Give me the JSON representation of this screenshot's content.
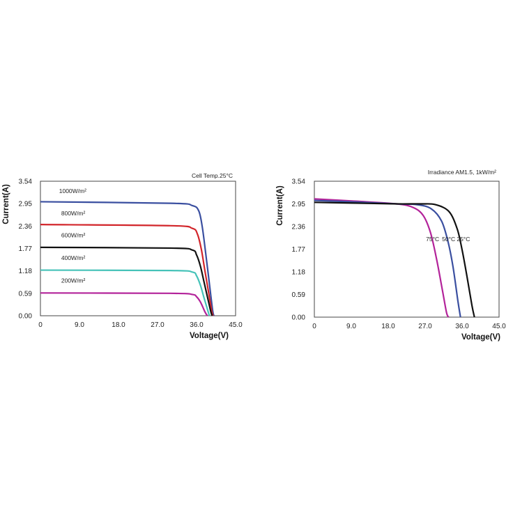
{
  "colors": {
    "navy": "#3a4fa0",
    "red": "#d2252a",
    "black": "#111111",
    "teal": "#45c2b8",
    "magenta": "#b3239a"
  },
  "chart_data": [
    {
      "type": "line",
      "annotation": "Cell Temp.25°C",
      "xlabel": "Voltage(V)",
      "ylabel": "Current(A)",
      "xlim": [
        0,
        45
      ],
      "ylim": [
        0,
        3.54
      ],
      "xticks": [
        "0",
        "9.0",
        "18.0",
        "27.0",
        "36.0",
        "45.0"
      ],
      "xtick_values": [
        0,
        9,
        18,
        27,
        36,
        45
      ],
      "yticks": [
        "0.00",
        "0.59",
        "1.18",
        "1.77",
        "2.36",
        "2.95",
        "3.54"
      ],
      "ytick_values": [
        0,
        0.59,
        1.18,
        1.77,
        2.36,
        2.95,
        3.54
      ],
      "grid": false,
      "series": [
        {
          "name": "1000W/m²",
          "color": "#3a4fa0",
          "x": [
            0,
            30,
            35,
            36.5,
            37.3,
            38.1,
            38.9,
            39.7,
            40.0
          ],
          "y": [
            3.0,
            2.96,
            2.9,
            2.76,
            2.35,
            1.65,
            0.9,
            0.15,
            0.0
          ]
        },
        {
          "name": "800W/m²",
          "color": "#d2252a",
          "x": [
            0,
            30,
            35,
            36.2,
            37.1,
            37.9,
            38.8,
            39.5,
            39.8
          ],
          "y": [
            2.4,
            2.37,
            2.3,
            2.15,
            1.75,
            1.2,
            0.6,
            0.12,
            0.0
          ]
        },
        {
          "name": "600W/m²",
          "color": "#111111",
          "x": [
            0,
            30,
            35,
            36.0,
            36.9,
            37.7,
            38.6,
            39.3,
            39.6
          ],
          "y": [
            1.8,
            1.78,
            1.73,
            1.6,
            1.3,
            0.9,
            0.45,
            0.1,
            0.0
          ]
        },
        {
          "name": "400W/m²",
          "color": "#45c2b8",
          "x": [
            0,
            30,
            35,
            36.0,
            36.9,
            37.6,
            38.3,
            38.8,
            39.0
          ],
          "y": [
            1.2,
            1.19,
            1.15,
            1.05,
            0.8,
            0.52,
            0.25,
            0.06,
            0.0
          ]
        },
        {
          "name": "200W/m²",
          "color": "#b3239a",
          "x": [
            0,
            30,
            35,
            36.0,
            36.8,
            37.4,
            37.9,
            38.3,
            38.5
          ],
          "y": [
            0.6,
            0.59,
            0.56,
            0.5,
            0.38,
            0.24,
            0.11,
            0.03,
            0.0
          ]
        }
      ],
      "label_positions_data": [
        {
          "series": 0,
          "x": 4.3,
          "y": 3.23
        },
        {
          "series": 1,
          "x": 4.8,
          "y": 2.64
        },
        {
          "series": 2,
          "x": 4.8,
          "y": 2.06
        },
        {
          "series": 3,
          "x": 4.8,
          "y": 1.47
        },
        {
          "series": 4,
          "x": 4.8,
          "y": 0.87
        }
      ]
    },
    {
      "type": "line",
      "annotation": "Irradiance AM1.5, 1kW/m²",
      "xlabel": "Voltage(V)",
      "ylabel": "Current(A)",
      "xlim": [
        0,
        45
      ],
      "ylim": [
        0,
        3.54
      ],
      "xticks": [
        "0",
        "9.0",
        "18.0",
        "27.0",
        "36.0",
        "45.0"
      ],
      "xtick_values": [
        0,
        9,
        18,
        27,
        36,
        45
      ],
      "yticks": [
        "0.00",
        "0.59",
        "1.18",
        "1.77",
        "2.36",
        "2.95",
        "3.54"
      ],
      "ytick_values": [
        0,
        0.59,
        1.18,
        1.77,
        2.36,
        2.95,
        3.54
      ],
      "grid": false,
      "series": [
        {
          "name": "75°C",
          "color": "#b3239a",
          "x": [
            0,
            10,
            20,
            24,
            26.5,
            28.3,
            29.8,
            31.2,
            32.2,
            32.7
          ],
          "y": [
            3.08,
            3.02,
            2.95,
            2.86,
            2.65,
            2.2,
            1.5,
            0.7,
            0.12,
            0.0
          ]
        },
        {
          "name": "50°C",
          "color": "#3a4fa0",
          "x": [
            0,
            10,
            20,
            25,
            28.5,
            31.0,
            32.6,
            33.8,
            35.0,
            35.6
          ],
          "y": [
            3.04,
            3.0,
            2.95,
            2.93,
            2.82,
            2.5,
            1.95,
            1.3,
            0.4,
            0.0
          ]
        },
        {
          "name": "25°C",
          "color": "#111111",
          "x": [
            0,
            10,
            20,
            26,
            29.5,
            32.8,
            34.8,
            36.0,
            37.2,
            38.4,
            39.0
          ],
          "y": [
            2.99,
            2.97,
            2.95,
            2.95,
            2.93,
            2.75,
            2.3,
            1.75,
            1.05,
            0.3,
            0.0
          ]
        }
      ],
      "label_positions_data": [
        {
          "series": 0,
          "x": 27.2,
          "y": 1.98
        },
        {
          "series": 1,
          "x": 31.1,
          "y": 1.98
        },
        {
          "series": 2,
          "x": 34.7,
          "y": 1.98
        }
      ]
    }
  ]
}
